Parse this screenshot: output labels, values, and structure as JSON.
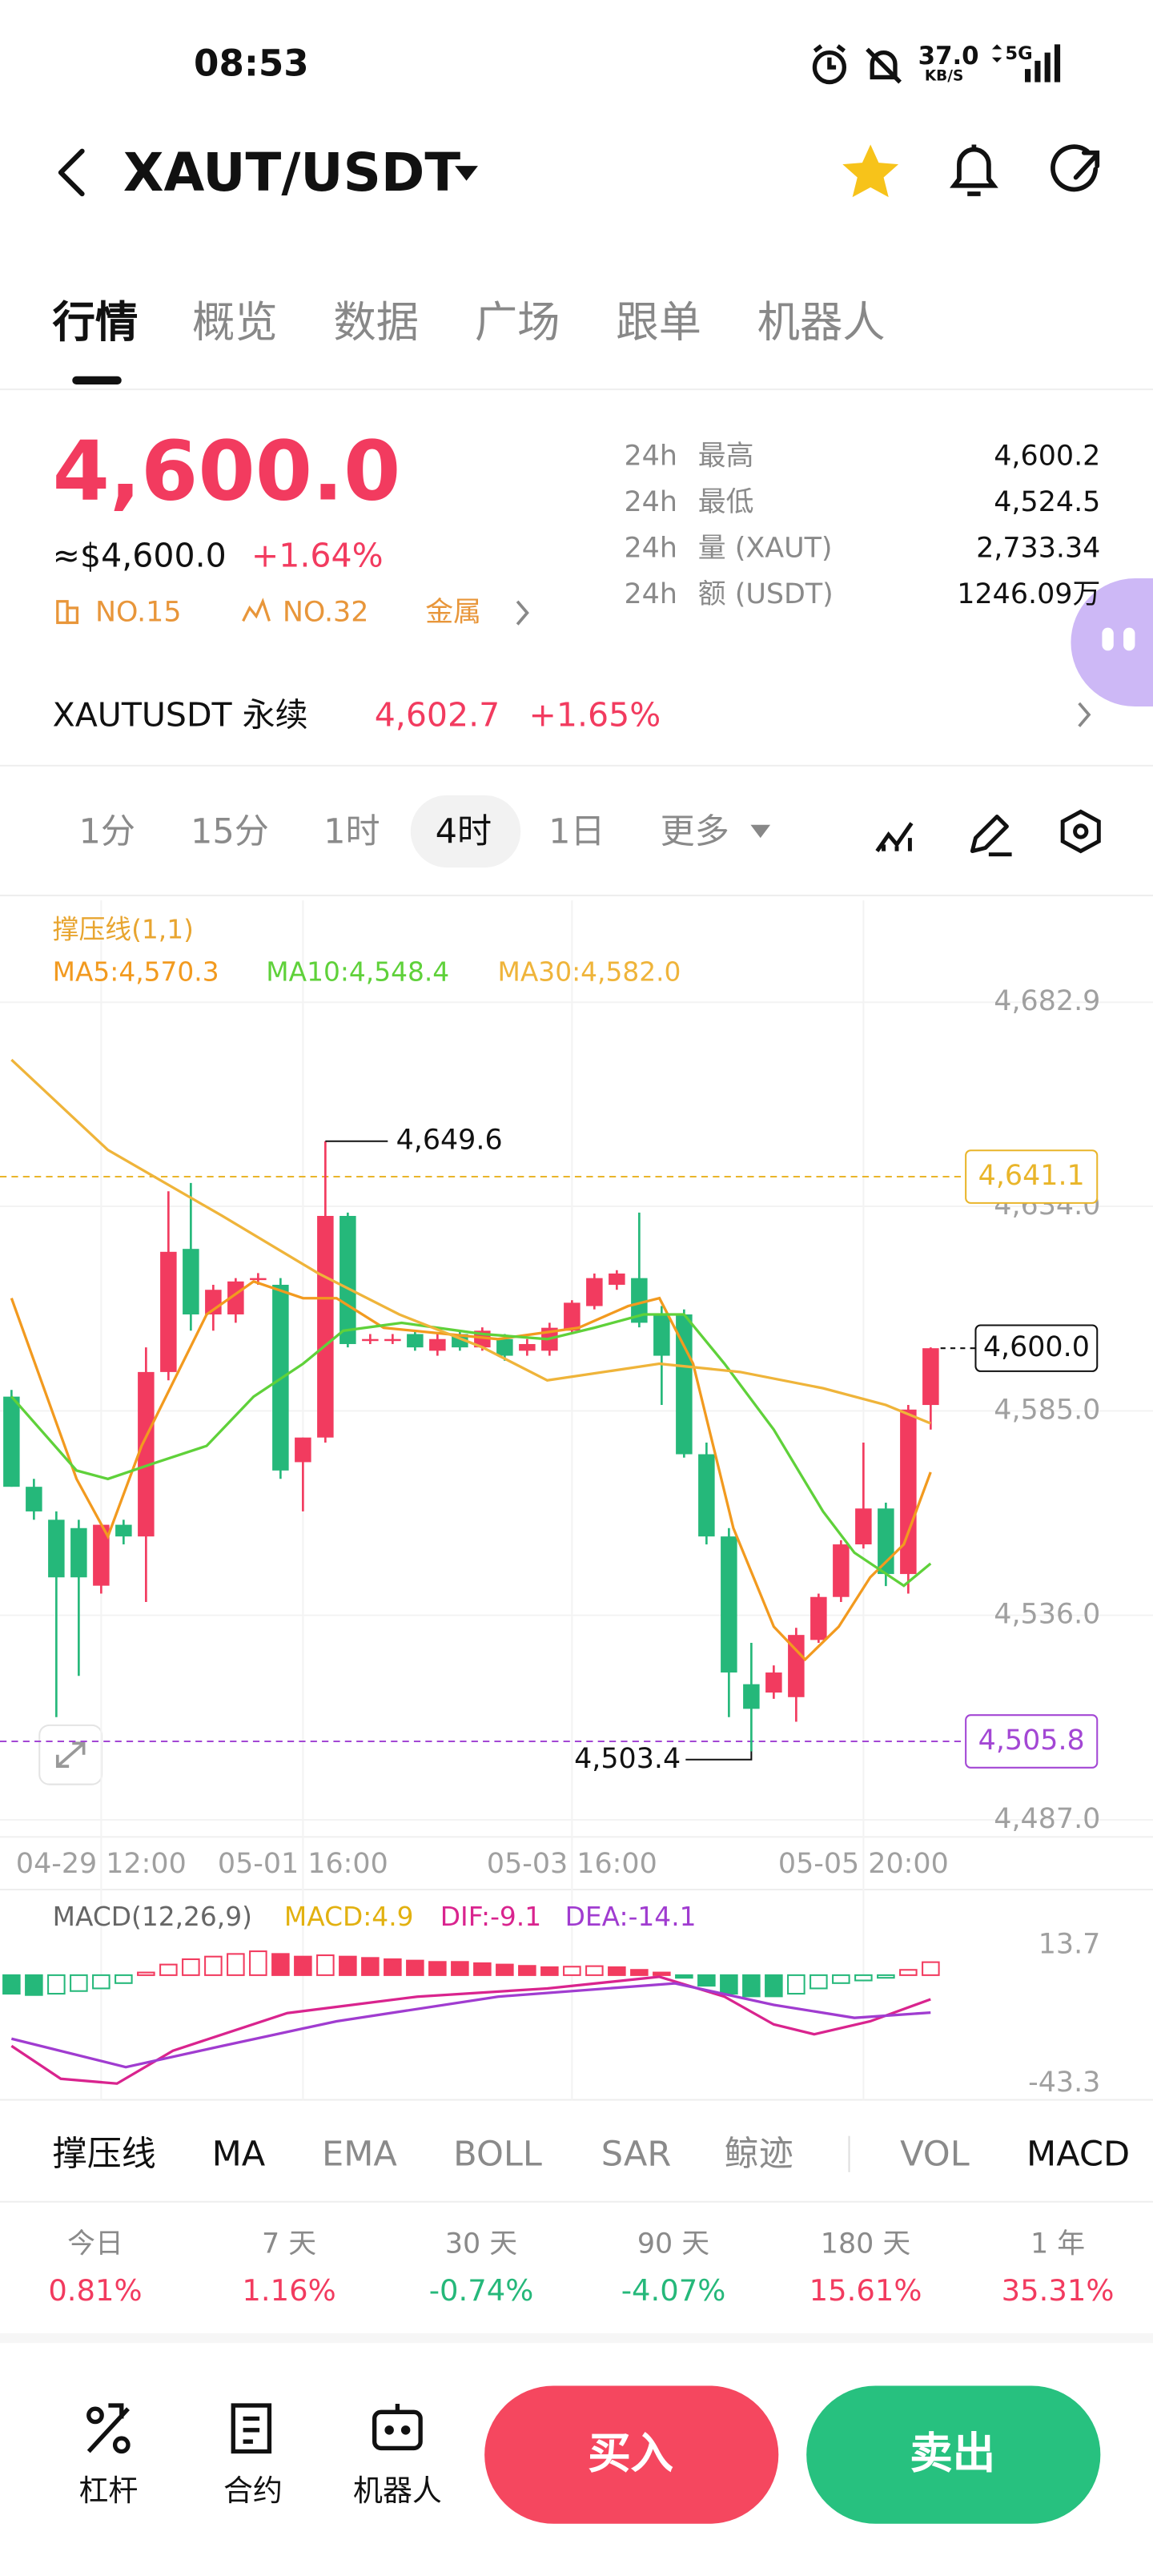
{
  "status_bar": {
    "time": "08:53",
    "speed": "37.0",
    "speed_unit": "KB/S",
    "network": "5G"
  },
  "header": {
    "pair": "XAUT/USDT"
  },
  "tabs": [
    "行情",
    "概览",
    "数据",
    "广场",
    "跟单",
    "机器人"
  ],
  "ticker": {
    "price": "4,600.0",
    "price_usd": "≈$4,600.0",
    "change": "+1.64%",
    "rank_1": "NO.15",
    "rank_2": "NO.32",
    "sector": "金属"
  },
  "stats": [
    {
      "period": "24h",
      "label": "最高",
      "value": "4,600.2"
    },
    {
      "period": "24h",
      "label": "最低",
      "value": "4,524.5"
    },
    {
      "period": "24h",
      "label": "量 (XAUT)",
      "value": "2,733.34"
    },
    {
      "period": "24h",
      "label": "额 (USDT)",
      "value": "1246.09万"
    }
  ],
  "perpetual": {
    "name": "XAUTUSDT 永续",
    "price": "4,602.7",
    "change": "+1.65%"
  },
  "intervals": [
    "1分",
    "15分",
    "1时",
    "4时",
    "1日",
    "更多"
  ],
  "indicator": "撑压线(1,1)",
  "chart_data": [
    {
      "type": "candlestick",
      "categories": [
        null,
        null,
        null,
        null,
        "04-29 12:00",
        null,
        null,
        null,
        null,
        null,
        null,
        null,
        null,
        "05-01 16:00",
        null,
        null,
        null,
        null,
        null,
        null,
        null,
        null,
        null,
        null,
        null,
        "05-03 16:00",
        null,
        null,
        null,
        null,
        null,
        null,
        null,
        null,
        null,
        null,
        null,
        null,
        "05-05 20:00",
        null,
        null,
        null
      ],
      "open": [
        4588.4,
        4566.8,
        4558.9,
        4556.9,
        4543.1,
        4557.7,
        4554.9,
        4594.3,
        4623.8,
        4608.1,
        4608.1,
        4616.8,
        4615.2,
        4572.7,
        4578.6,
        4631.7,
        4602.2,
        4602.2,
        4603.4,
        4599.4,
        4603.4,
        4600.2,
        4602.2,
        4599.4,
        4599.4,
        4604.2,
        4610.1,
        4615.2,
        4616.8,
        4608.1,
        4608.1,
        4574.6,
        4554.9,
        4519.5,
        4517.5,
        4516.4,
        4530.1,
        4540.4,
        4553.0,
        4561.6,
        4545.9,
        4586.4
      ],
      "high": [
        4590.0,
        4568.7,
        4560.9,
        4558.9,
        4557.7,
        4558.9,
        4600.2,
        4637.6,
        4639.6,
        4615.2,
        4616.8,
        4618.0,
        4616.8,
        4578.6,
        4649.6,
        4632.5,
        4603.4,
        4603.4,
        4604.2,
        4603.4,
        4604.2,
        4605.0,
        4603.4,
        4602.2,
        4606.1,
        4611.5,
        4617.9,
        4618.7,
        4632.5,
        4610.1,
        4609.3,
        4577.4,
        4556.9,
        4529.4,
        4524.0,
        4533.0,
        4541.2,
        4554.0,
        4577.4,
        4563.0,
        4586.4,
        4600.2
      ],
      "low": [
        4566.8,
        4558.9,
        4511.6,
        4521.5,
        4541.2,
        4553.0,
        4539.2,
        4592.3,
        4604.2,
        4604.2,
        4606.1,
        4615.2,
        4568.7,
        4560.9,
        4577.4,
        4600.2,
        4601.0,
        4601.0,
        4599.4,
        4598.2,
        4599.4,
        4599.4,
        4597.0,
        4598.2,
        4598.2,
        4603.4,
        4609.3,
        4614.0,
        4605.0,
        4586.4,
        4573.8,
        4553.0,
        4511.6,
        4503.4,
        4516.0,
        4510.5,
        4529.4,
        4539.2,
        4552.0,
        4543.0,
        4541.2,
        4580.5
      ],
      "close": [
        4566.8,
        4560.9,
        4545.1,
        4545.1,
        4557.7,
        4554.9,
        4594.3,
        4623.1,
        4608.1,
        4614.0,
        4616.0,
        4616.8,
        4570.7,
        4578.6,
        4631.7,
        4601.0,
        4602.2,
        4602.2,
        4600.2,
        4602.2,
        4600.2,
        4604.2,
        4598.2,
        4601.0,
        4604.9,
        4610.9,
        4616.8,
        4617.9,
        4606.1,
        4598.2,
        4574.6,
        4554.9,
        4522.3,
        4513.6,
        4522.3,
        4531.3,
        4540.4,
        4553.0,
        4561.6,
        4545.9,
        4585.3,
        4600.0
      ],
      "up_color": "#f23b5f",
      "down_color": "#25b87a",
      "ylim": [
        4482.9,
        4707.3
      ],
      "yticks": [
        {
          "value": 4682.9,
          "label": "4,682.9"
        },
        {
          "value": 4634.0,
          "label": "4,634.0"
        },
        {
          "value": 4585.0,
          "label": "4,585.0"
        },
        {
          "value": 4536.0,
          "label": "4,536.0"
        },
        {
          "value": 4487.0,
          "label": "4,487.0"
        }
      ],
      "series": [
        {
          "name": "MA5:4,570.3",
          "color": "#f29a1f",
          "x": [
            0,
            2.9,
            4.3,
            5.8,
            8.7,
            10.8,
            13.0,
            14.5,
            16.6,
            21.7,
            25.3,
            27.5,
            28.9,
            30.4,
            32.2,
            34.0,
            35.4,
            36.9,
            38.3,
            39.8,
            41
          ],
          "values": [
            4612.0,
            4568.7,
            4554.9,
            4576.6,
            4608.1,
            4616.0,
            4612.0,
            4612.0,
            4604.9,
            4602.2,
            4604.9,
            4610.1,
            4612.0,
            4596.3,
            4556.9,
            4533.3,
            4525.4,
            4533.3,
            4545.1,
            4553.0,
            4570.3
          ]
        },
        {
          "name": "MA10:4,548.4",
          "color": "#5fd13a",
          "x": [
            0,
            2.9,
            4.3,
            6.5,
            8.7,
            10.8,
            13.0,
            14.8,
            17.4,
            21.0,
            23.9,
            26.0,
            28.2,
            30.0,
            31.8,
            34.0,
            36.2,
            37.6,
            39.8,
            41
          ],
          "values": [
            4588.4,
            4570.7,
            4568.7,
            4572.7,
            4576.6,
            4588.4,
            4596.3,
            4604.2,
            4606.1,
            4603.4,
            4602.2,
            4604.9,
            4608.1,
            4608.1,
            4596.3,
            4580.5,
            4560.9,
            4551.0,
            4543.1,
            4548.4
          ]
        },
        {
          "name": "MA30:4,582.0",
          "color": "#efb43a",
          "x": [
            0,
            4.3,
            9.4,
            13.7,
            17.3,
            21.0,
            23.9,
            28.9,
            32.5,
            36.2,
            39.0,
            41
          ],
          "values": [
            4669.1,
            4647.5,
            4631.7,
            4617.9,
            4608.1,
            4600.2,
            4592.3,
            4596.3,
            4594.3,
            4590.4,
            4586.4,
            4582.0
          ]
        }
      ],
      "high_label": {
        "value": 4649.6,
        "label": "4,649.6"
      },
      "low_label": {
        "value": 4503.4,
        "label": "4,503.4"
      },
      "price_lines": [
        {
          "value": 4641.1,
          "label": "4,641.1",
          "color": "#e9b52a"
        },
        {
          "value": 4505.8,
          "label": "4,505.8",
          "color": "#a347d4"
        }
      ],
      "last_price": {
        "value": 4600.0,
        "label": "4,600.0"
      }
    },
    {
      "type": "macd",
      "title": "MACD(12,26,9)",
      "name": "MACD:4.9",
      "color": "#e2b110",
      "values": [
        -7,
        -7.5,
        -7,
        -6,
        -5,
        -3,
        1,
        4,
        6,
        7,
        8,
        9,
        8,
        7,
        7.5,
        7,
        6.5,
        6,
        5.5,
        5,
        5,
        4.5,
        4,
        3.5,
        3,
        3.2,
        3.4,
        3,
        2,
        1,
        -1,
        -4,
        -7,
        -8,
        -8,
        -7,
        -5,
        -3,
        -2,
        -1,
        2,
        4.9
      ],
      "up_color": "#f23b5f",
      "down_color": "#25b87a",
      "ylim": [
        -43.3,
        13.7
      ],
      "yticks": [
        13.7,
        -43.3
      ],
      "series": [
        {
          "name": "DIF:-9.1",
          "color": "#d9248e",
          "x": [
            0,
            2.2,
            4.7,
            7.2,
            12.3,
            18.1,
            23.9,
            28.9,
            31.8,
            34.0,
            35.8,
            38.3,
            41
          ],
          "values": [
            -26.7,
            -39.1,
            -40.9,
            -28.5,
            -14.3,
            -8.1,
            -5.0,
            -0.6,
            -8.1,
            -18.6,
            -22.3,
            -17.4,
            -9.1
          ]
        },
        {
          "name": "DEA:-14.1",
          "color": "#a03cd0",
          "x": [
            0,
            5.1,
            9.4,
            14.5,
            21.7,
            29.6,
            34.0,
            37.6,
            41
          ],
          "values": [
            -24.0,
            -34.7,
            -26.7,
            -17.4,
            -8.1,
            -3.1,
            -11.2,
            -16.1,
            -14.1
          ]
        }
      ]
    }
  ],
  "indicator_tabs": [
    "撑压线",
    "MA",
    "EMA",
    "BOLL",
    "SAR",
    "鲸迹",
    "VOL",
    "MACD"
  ],
  "performance": [
    {
      "period": "今日",
      "change": "0.81%"
    },
    {
      "period": "7 天",
      "change": "1.16%"
    },
    {
      "period": "30 天",
      "change": "-0.74%"
    },
    {
      "period": "90 天",
      "change": "-4.07%"
    },
    {
      "period": "180 天",
      "change": "15.61%"
    },
    {
      "period": "1 年",
      "change": "35.31%"
    }
  ],
  "toolbar": [
    "杠杆",
    "合约",
    "机器人"
  ],
  "actions": {
    "buy": "买入",
    "sell": "卖出"
  }
}
